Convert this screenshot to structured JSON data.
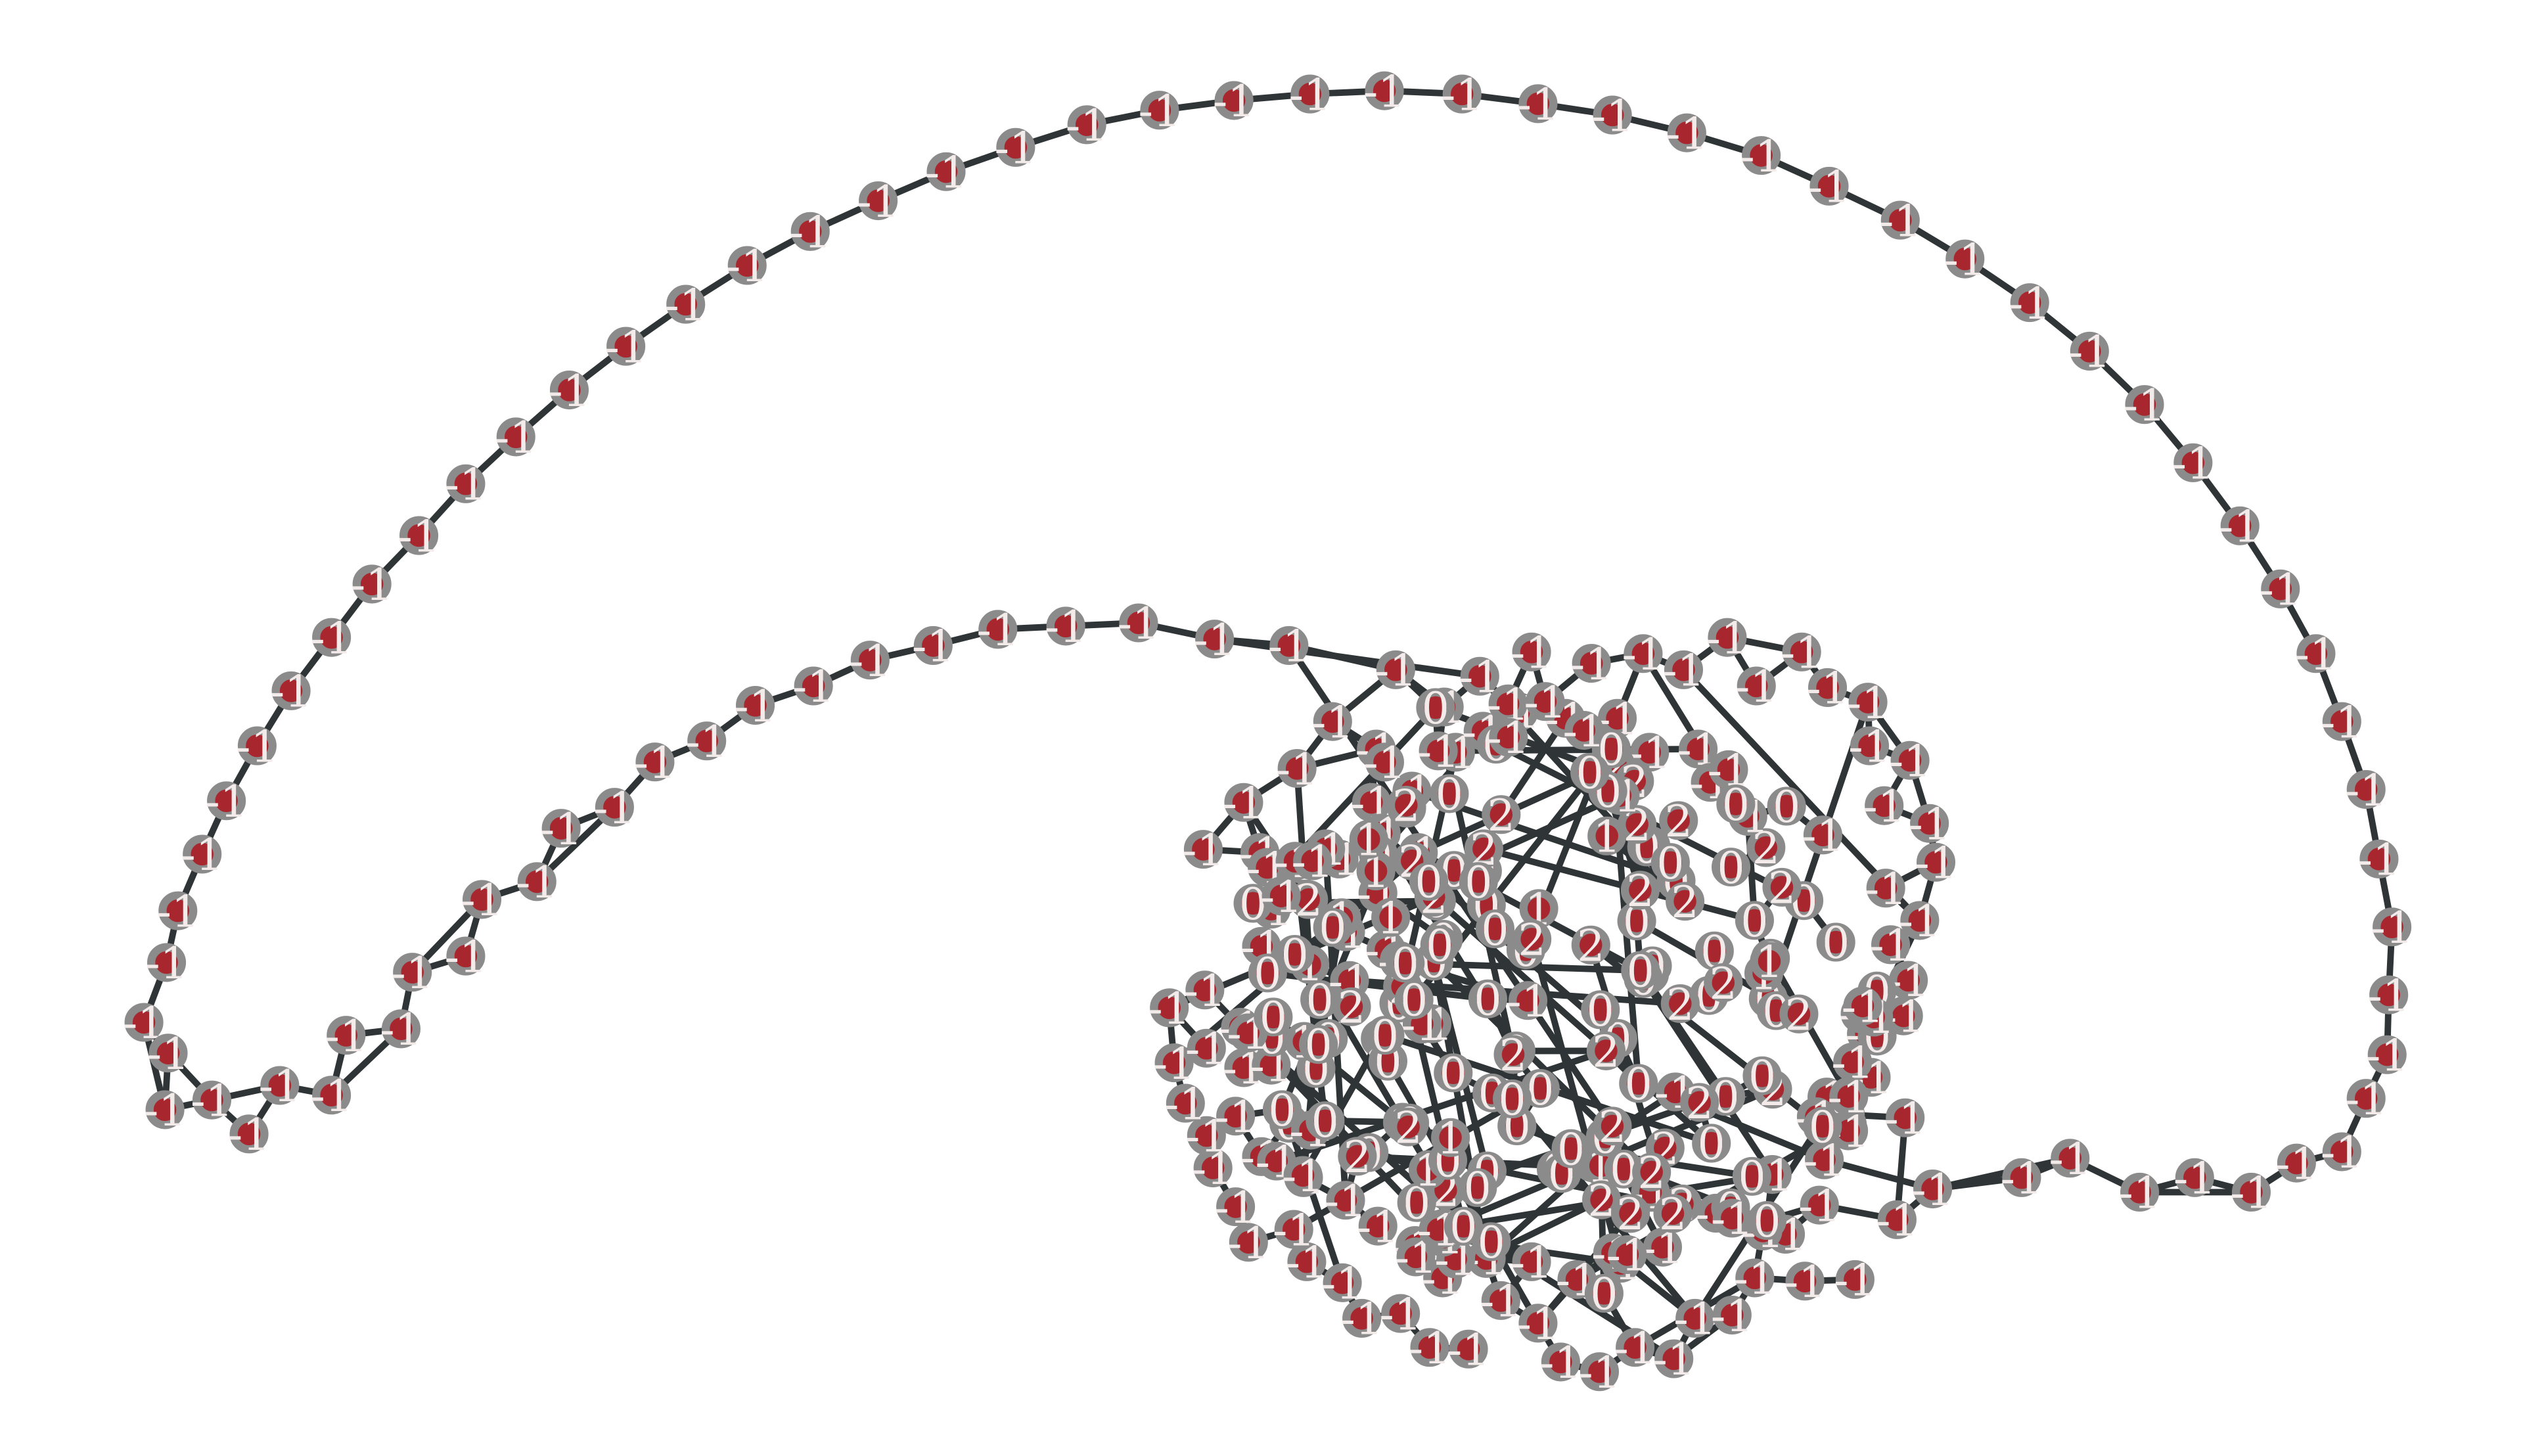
{
  "graph": {
    "type": "network",
    "node_fill": "#a8262e",
    "node_stroke": "#8b8b8b",
    "edge_color": "#2f3436",
    "label_color": "#f3eaea",
    "label_values_present": [
      "-1",
      "0",
      "1",
      "2"
    ],
    "components": {
      "ring_path": {
        "description_label": "-1"
      },
      "loop_path": {
        "description_label": "-1"
      },
      "dense_cluster": {
        "labels": [
          "-1",
          "0",
          "1",
          "2"
        ]
      }
    }
  }
}
